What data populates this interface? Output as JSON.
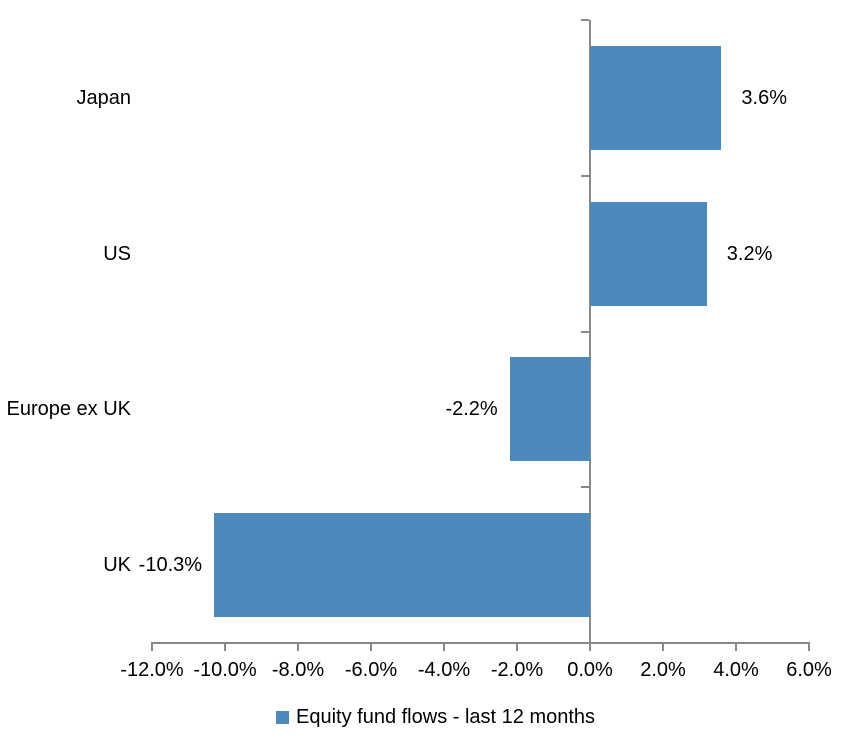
{
  "chart_data": {
    "type": "bar",
    "orientation": "horizontal",
    "title": "",
    "categories": [
      "Japan",
      "US",
      "Europe ex UK",
      "UK"
    ],
    "series": [
      {
        "name": "Equity fund flows - last 12 months",
        "values": [
          3.6,
          3.2,
          -2.2,
          -10.3
        ],
        "data_labels": [
          "3.6%",
          "3.2%",
          "-2.2%",
          "-10.3%"
        ],
        "color": "#4E89BE"
      }
    ],
    "x_axis": {
      "min": -12,
      "max": 6,
      "step": 2,
      "tick_labels": [
        "-12.0%",
        "-10.0%",
        "-8.0%",
        "-6.0%",
        "-4.0%",
        "-2.0%",
        "0.0%",
        "2.0%",
        "4.0%",
        "6.0%"
      ]
    },
    "legend": {
      "position": "bottom",
      "label": "Equity fund flows - last 12 months",
      "swatch_color": "#4E89BE"
    },
    "grid": false,
    "axis_color": "#898989",
    "text_color": "#000000",
    "background": "#FFFFFF"
  }
}
